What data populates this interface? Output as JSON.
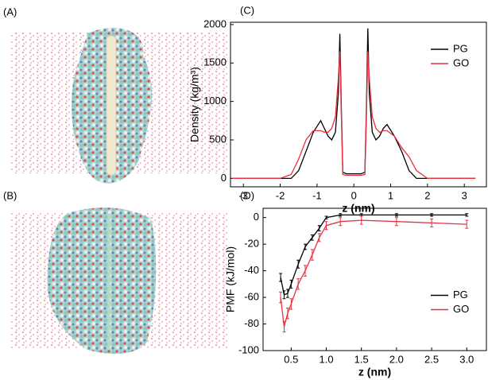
{
  "panel_labels": [
    "(A)",
    "(B)",
    "(C)",
    "(D)"
  ],
  "chart_data": [
    {
      "type": "line",
      "x_label": "z (nm)",
      "y_label": "Density (kg/m³)",
      "xlim": [
        -3.35,
        3.6
      ],
      "ylim": [
        -110,
        2030
      ],
      "xticks": [
        -3,
        -2,
        -1,
        0,
        1,
        2,
        3
      ],
      "yticks": [
        0,
        500,
        1000,
        1500,
        2000
      ],
      "x": [
        -3.3,
        -2.0,
        -1.7,
        -1.5,
        -1.3,
        -1.1,
        -0.9,
        -0.8,
        -0.7,
        -0.6,
        -0.5,
        -0.42,
        -0.38,
        -0.34,
        -0.3,
        -0.2,
        0,
        0.2,
        0.3,
        0.34,
        0.38,
        0.42,
        0.5,
        0.6,
        0.7,
        0.8,
        0.9,
        1.1,
        1.3,
        1.5,
        1.7,
        2.0,
        3.3
      ],
      "series": [
        {
          "name": "PG",
          "color": "#000000",
          "values": [
            0,
            0,
            0,
            100,
            350,
            600,
            750,
            650,
            550,
            500,
            600,
            1100,
            1880,
            900,
            80,
            60,
            60,
            60,
            80,
            900,
            1950,
            1100,
            600,
            500,
            550,
            650,
            700,
            550,
            350,
            100,
            0,
            0,
            0
          ]
        },
        {
          "name": "GO",
          "color": "#e8303f",
          "values": [
            0,
            0,
            50,
            250,
            500,
            620,
            620,
            600,
            600,
            650,
            800,
            1300,
            1650,
            800,
            50,
            40,
            40,
            40,
            50,
            800,
            1650,
            1300,
            800,
            650,
            600,
            620,
            620,
            550,
            400,
            280,
            100,
            0,
            0
          ]
        }
      ],
      "legend": "upper-right"
    },
    {
      "type": "errorline",
      "x_label": "z (nm)",
      "y_label": "PMF (kJ/mol)",
      "xlim": [
        0.1,
        3.28
      ],
      "ylim": [
        -100,
        7
      ],
      "xticks": [
        0.5,
        {
          "value": 1,
          "label": "1.0"
        },
        1.5,
        {
          "value": 2,
          "label": "2.0"
        },
        2.5,
        {
          "value": 3,
          "label": "3.0"
        }
      ],
      "yticks": [
        0,
        -20,
        -40,
        -60,
        -80,
        -100
      ],
      "x": [
        0.35,
        0.4,
        0.45,
        0.5,
        0.6,
        0.7,
        0.8,
        0.9,
        1.0,
        1.2,
        1.5,
        2.0,
        2.5,
        3.0
      ],
      "series": [
        {
          "name": "PG",
          "color": "#000000",
          "values": [
            -45,
            -58,
            -57,
            -50,
            -35,
            -22,
            -15,
            -8,
            0,
            2,
            2,
            2,
            2,
            2
          ],
          "errors": [
            3,
            3,
            3,
            3,
            3,
            2,
            2,
            2,
            1,
            1,
            1,
            1,
            1,
            1
          ]
        },
        {
          "name": "GO",
          "color": "#e8303f",
          "values": [
            -60,
            -82,
            -72,
            -65,
            -50,
            -40,
            -28,
            -15,
            -6,
            -3,
            -2,
            -3,
            -4,
            -5
          ],
          "errors": [
            4,
            4,
            4,
            4,
            4,
            4,
            4,
            3,
            3,
            3,
            3,
            3,
            3,
            3
          ]
        }
      ],
      "legend": "center-right"
    }
  ]
}
